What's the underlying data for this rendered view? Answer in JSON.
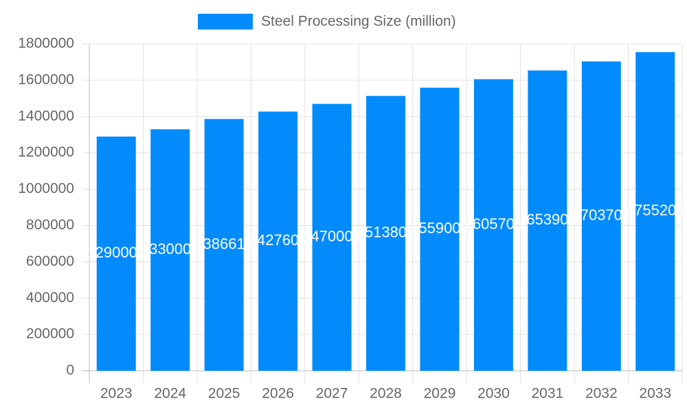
{
  "chart_data": {
    "type": "bar",
    "categories": [
      "2023",
      "2024",
      "2025",
      "2026",
      "2027",
      "2028",
      "2029",
      "2030",
      "2031",
      "2032",
      "2033"
    ],
    "series": [
      {
        "name": "Steel Processing Size (million)",
        "color": "#038bfc",
        "values": [
          1290000,
          1330000,
          1386610,
          1427600,
          1470000,
          1513800,
          1559000,
          1605700,
          1653900,
          1703700,
          1755200
        ]
      }
    ],
    "ylim": [
      0,
      1800000
    ],
    "yticks": [
      0,
      200000,
      400000,
      600000,
      800000,
      1000000,
      1200000,
      1400000,
      1600000,
      1800000
    ],
    "grid": true,
    "legend": "top"
  }
}
